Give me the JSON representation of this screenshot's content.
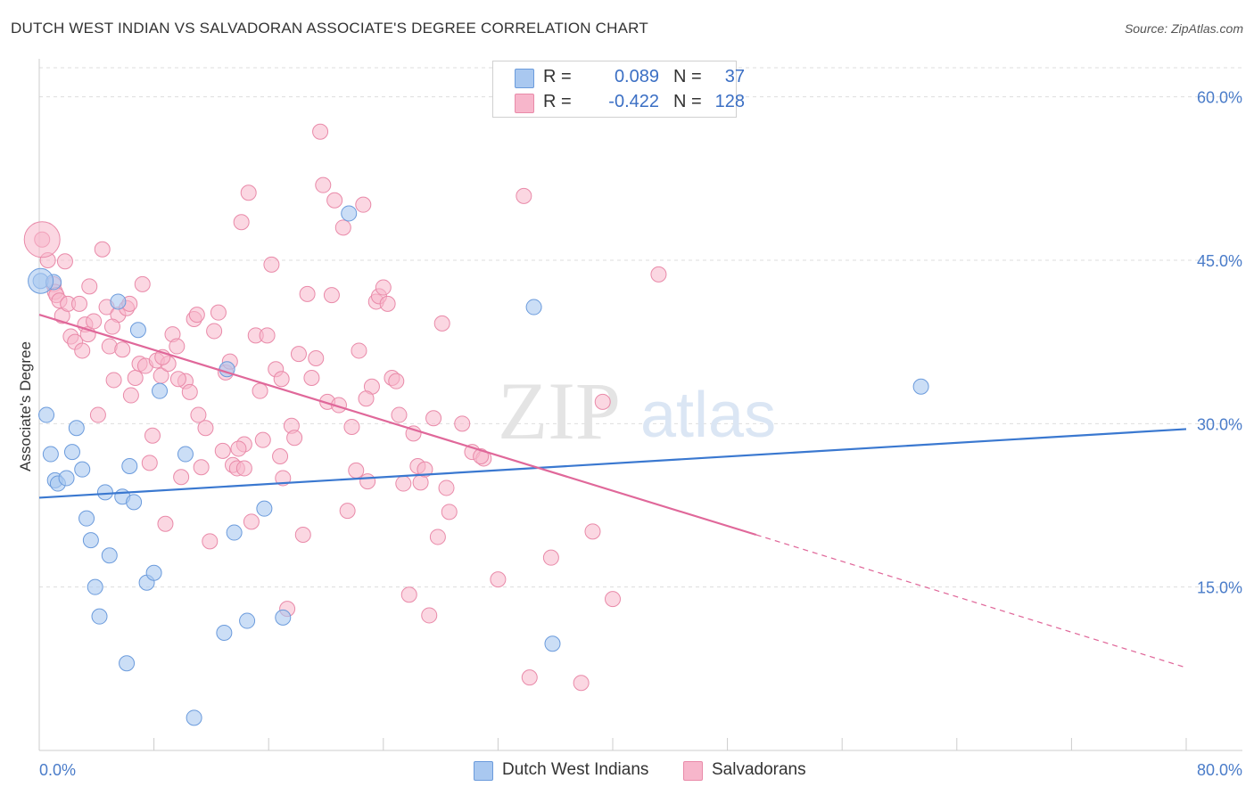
{
  "title": "DUTCH WEST INDIAN VS SALVADORAN ASSOCIATE'S DEGREE CORRELATION CHART",
  "source": "Source: ZipAtlas.com",
  "watermark": {
    "zip": "ZIP",
    "atlas": "atlas"
  },
  "legend": {
    "series1": {
      "r_label": "R =",
      "r_value": "0.089",
      "n_label": "N =",
      "n_value": "37"
    },
    "series2": {
      "r_label": "R =",
      "r_value": "-0.422",
      "n_label": "N =",
      "n_value": "128"
    }
  },
  "bottom_legend": {
    "series1": "Dutch West Indians",
    "series2": "Salvadorans"
  },
  "colors": {
    "blue_fill": "#a9c8f0",
    "blue_stroke": "#6b9bdc",
    "blue_line": "#3a78d0",
    "pink_fill": "#f7b6cb",
    "pink_stroke": "#e98aa9",
    "pink_line": "#e0689a",
    "grid": "#dddddd",
    "tick_text": "#4a7cc9"
  },
  "chart_data": {
    "type": "scatter",
    "title": "DUTCH WEST INDIAN VS SALVADORAN ASSOCIATE'S DEGREE CORRELATION CHART",
    "xlabel": "",
    "ylabel": "Associate's Degree",
    "xlim": [
      0,
      80
    ],
    "ylim": [
      0,
      63
    ],
    "x_tick_labels": [
      "0.0%",
      "80.0%"
    ],
    "y_ticks": [
      15,
      30,
      45,
      60
    ],
    "y_tick_labels": [
      "15.0%",
      "30.0%",
      "45.0%",
      "60.0%"
    ],
    "grid": true,
    "legend_position": "top-center",
    "series": [
      {
        "name": "Dutch West Indians",
        "R": 0.089,
        "N": 37,
        "trend": {
          "x0": 0,
          "y0": 23.2,
          "x1": 80,
          "y1": 29.5
        },
        "points": [
          [
            0.1,
            43.1
          ],
          [
            0.5,
            30.8
          ],
          [
            0.8,
            27.2
          ],
          [
            1.0,
            43.0
          ],
          [
            1.1,
            24.8
          ],
          [
            1.3,
            24.5
          ],
          [
            1.9,
            25.0
          ],
          [
            2.3,
            27.4
          ],
          [
            2.6,
            29.6
          ],
          [
            3.0,
            25.8
          ],
          [
            3.3,
            21.3
          ],
          [
            3.6,
            19.3
          ],
          [
            3.9,
            15.0
          ],
          [
            4.2,
            12.3
          ],
          [
            4.6,
            23.7
          ],
          [
            4.9,
            17.9
          ],
          [
            5.5,
            41.2
          ],
          [
            5.8,
            23.3
          ],
          [
            6.1,
            8.0
          ],
          [
            6.3,
            26.1
          ],
          [
            6.6,
            22.8
          ],
          [
            6.9,
            38.6
          ],
          [
            7.5,
            15.4
          ],
          [
            8.0,
            16.3
          ],
          [
            8.4,
            33.0
          ],
          [
            10.2,
            27.2
          ],
          [
            10.8,
            3.0
          ],
          [
            12.9,
            10.8
          ],
          [
            13.1,
            35.0
          ],
          [
            13.6,
            20.0
          ],
          [
            14.5,
            11.9
          ],
          [
            15.7,
            22.2
          ],
          [
            17.0,
            12.2
          ],
          [
            21.6,
            49.3
          ],
          [
            34.5,
            40.7
          ],
          [
            35.8,
            9.8
          ],
          [
            61.5,
            33.4
          ]
        ]
      },
      {
        "name": "Salvadorans",
        "R": -0.422,
        "N": 128,
        "trend": {
          "x0": 0,
          "y0": 40.0,
          "x1": 50,
          "y1": 19.8,
          "dash_x1": 80,
          "dash_y1": 7.6
        },
        "points": [
          [
            0.2,
            46.9
          ],
          [
            0.6,
            45.0
          ],
          [
            1.0,
            42.8
          ],
          [
            1.1,
            42.1
          ],
          [
            1.2,
            41.8
          ],
          [
            1.4,
            41.3
          ],
          [
            1.6,
            39.9
          ],
          [
            1.8,
            44.9
          ],
          [
            2.0,
            41.0
          ],
          [
            2.2,
            38.0
          ],
          [
            2.5,
            37.5
          ],
          [
            2.8,
            41.0
          ],
          [
            3.0,
            36.7
          ],
          [
            3.2,
            39.1
          ],
          [
            3.4,
            38.2
          ],
          [
            3.8,
            39.4
          ],
          [
            4.1,
            30.8
          ],
          [
            4.4,
            46.0
          ],
          [
            4.7,
            40.7
          ],
          [
            4.9,
            37.1
          ],
          [
            5.2,
            34.0
          ],
          [
            5.5,
            40.0
          ],
          [
            5.8,
            36.8
          ],
          [
            6.1,
            40.6
          ],
          [
            6.4,
            32.6
          ],
          [
            6.7,
            34.2
          ],
          [
            7.0,
            35.5
          ],
          [
            7.2,
            42.8
          ],
          [
            7.4,
            35.3
          ],
          [
            7.7,
            26.4
          ],
          [
            7.9,
            28.9
          ],
          [
            8.2,
            35.8
          ],
          [
            8.5,
            34.4
          ],
          [
            8.8,
            20.8
          ],
          [
            9.0,
            35.5
          ],
          [
            9.3,
            38.2
          ],
          [
            9.6,
            37.1
          ],
          [
            9.9,
            25.1
          ],
          [
            10.2,
            33.9
          ],
          [
            10.5,
            32.9
          ],
          [
            10.8,
            39.6
          ],
          [
            11.1,
            30.8
          ],
          [
            11.3,
            26.0
          ],
          [
            11.6,
            29.6
          ],
          [
            11.9,
            19.2
          ],
          [
            12.2,
            38.5
          ],
          [
            12.5,
            40.2
          ],
          [
            12.8,
            27.5
          ],
          [
            13.0,
            34.7
          ],
          [
            13.3,
            35.7
          ],
          [
            13.5,
            26.2
          ],
          [
            13.8,
            25.9
          ],
          [
            14.1,
            48.5
          ],
          [
            14.3,
            28.1
          ],
          [
            14.6,
            51.2
          ],
          [
            14.8,
            21.0
          ],
          [
            15.1,
            38.1
          ],
          [
            15.4,
            33.0
          ],
          [
            15.6,
            28.5
          ],
          [
            15.9,
            38.1
          ],
          [
            16.2,
            44.6
          ],
          [
            16.5,
            35.0
          ],
          [
            16.8,
            27.0
          ],
          [
            17.0,
            25.0
          ],
          [
            17.3,
            13.0
          ],
          [
            17.6,
            29.8
          ],
          [
            17.8,
            28.7
          ],
          [
            18.1,
            36.4
          ],
          [
            18.4,
            19.8
          ],
          [
            18.7,
            41.9
          ],
          [
            19.0,
            34.2
          ],
          [
            19.3,
            36.0
          ],
          [
            19.6,
            56.8
          ],
          [
            19.8,
            51.9
          ],
          [
            20.1,
            32.0
          ],
          [
            20.4,
            41.8
          ],
          [
            20.6,
            50.5
          ],
          [
            20.9,
            31.7
          ],
          [
            21.2,
            48.0
          ],
          [
            21.5,
            22.0
          ],
          [
            21.8,
            29.7
          ],
          [
            22.1,
            25.7
          ],
          [
            22.3,
            36.7
          ],
          [
            22.6,
            50.1
          ],
          [
            22.9,
            24.7
          ],
          [
            23.2,
            33.4
          ],
          [
            23.5,
            41.2
          ],
          [
            23.7,
            41.7
          ],
          [
            24.0,
            42.5
          ],
          [
            24.3,
            41.0
          ],
          [
            24.6,
            34.2
          ],
          [
            24.9,
            33.9
          ],
          [
            25.1,
            30.8
          ],
          [
            25.4,
            24.5
          ],
          [
            25.8,
            14.3
          ],
          [
            26.1,
            29.1
          ],
          [
            26.4,
            26.1
          ],
          [
            26.6,
            24.6
          ],
          [
            26.9,
            25.8
          ],
          [
            27.2,
            12.4
          ],
          [
            27.5,
            30.5
          ],
          [
            27.8,
            19.6
          ],
          [
            28.1,
            39.2
          ],
          [
            28.4,
            24.1
          ],
          [
            28.6,
            21.9
          ],
          [
            29.5,
            30.0
          ],
          [
            30.2,
            27.4
          ],
          [
            31.0,
            26.8
          ],
          [
            32.0,
            15.7
          ],
          [
            33.8,
            50.9
          ],
          [
            34.2,
            6.7
          ],
          [
            35.7,
            17.7
          ],
          [
            37.8,
            6.2
          ],
          [
            38.6,
            20.1
          ],
          [
            39.3,
            32.0
          ],
          [
            40.0,
            13.9
          ],
          [
            43.2,
            43.7
          ],
          [
            9.7,
            34.1
          ],
          [
            6.3,
            41.0
          ],
          [
            11.0,
            40.0
          ],
          [
            3.5,
            42.6
          ],
          [
            22.8,
            32.3
          ],
          [
            16.9,
            34.1
          ],
          [
            5.1,
            38.9
          ],
          [
            13.9,
            27.7
          ],
          [
            30.8,
            27.0
          ],
          [
            14.3,
            25.9
          ],
          [
            8.6,
            36.1
          ]
        ]
      }
    ]
  }
}
